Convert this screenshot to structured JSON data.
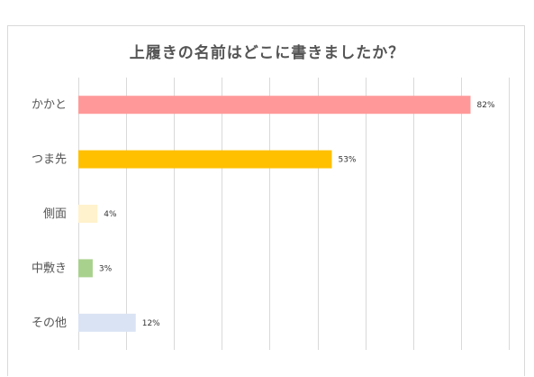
{
  "chart_data": {
    "type": "bar",
    "orientation": "horizontal",
    "title": "上履きの名前はどこに書きましたか？",
    "categories": [
      "かかと",
      "つま先",
      "側面",
      "中敷き",
      "その他"
    ],
    "values": [
      82,
      53,
      4,
      3,
      12
    ],
    "value_labels": [
      "82%",
      "53%",
      "4%",
      "3%",
      "12%"
    ],
    "colors": [
      "#ff9999",
      "#ffc000",
      "#fff2cc",
      "#a9d18e",
      "#dae3f3"
    ],
    "xlim": [
      0,
      90
    ],
    "grid": true,
    "legend": "none"
  }
}
